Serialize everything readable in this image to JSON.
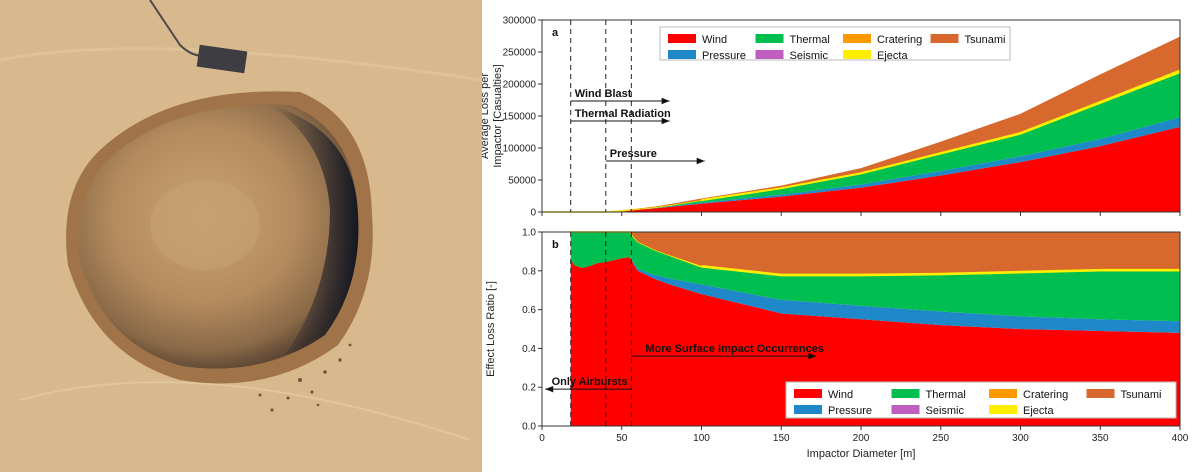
{
  "photo": {
    "subject": "meteor-crater-satellite-photo"
  },
  "colors": {
    "Wind": "#ff0000",
    "Pressure": "#1e88c8",
    "Thermal": "#00bf50",
    "Seismic": "#c05ec0",
    "Cratering": "#ff9900",
    "Ejecta": "#ffee00",
    "Tsunami": "#d8692e"
  },
  "chart_data": [
    {
      "type": "area",
      "stacked": true,
      "panel_label": "a",
      "ylabel_lines": [
        "Average Loss per",
        "Impactor [Casualties]"
      ],
      "xlim": [
        0,
        400
      ],
      "ylim": [
        0,
        300000
      ],
      "yticks": [
        0,
        50000,
        100000,
        150000,
        200000,
        250000,
        300000
      ],
      "x": [
        0,
        40,
        50,
        55,
        60,
        70,
        80,
        100,
        150,
        200,
        250,
        300,
        350,
        400
      ],
      "series": [
        {
          "name": "Wind",
          "values": [
            0,
            0,
            1500,
            2500,
            3500,
            5500,
            8000,
            13000,
            24000,
            38000,
            57000,
            78000,
            103000,
            133000
          ]
        },
        {
          "name": "Pressure",
          "values": [
            0,
            0,
            100,
            200,
            300,
            500,
            800,
            1500,
            3000,
            5000,
            7000,
            9000,
            11000,
            15000
          ]
        },
        {
          "name": "Thermal",
          "values": [
            0,
            0,
            200,
            400,
            600,
            1200,
            2000,
            4000,
            10000,
            17000,
            27000,
            35000,
            56000,
            70000
          ]
        },
        {
          "name": "Seismic",
          "values": [
            0,
            0,
            0,
            0,
            0,
            0,
            0,
            0,
            0,
            0,
            0,
            0,
            0,
            0
          ]
        },
        {
          "name": "Cratering",
          "values": [
            0,
            0,
            0,
            0,
            0,
            0,
            0,
            0,
            0,
            0,
            0,
            0,
            0,
            0
          ]
        },
        {
          "name": "Ejecta",
          "values": [
            0,
            0,
            0,
            0,
            0,
            0,
            0,
            0,
            200,
            500,
            1000,
            1500,
            2000,
            3000
          ]
        },
        {
          "name": "Tsunami",
          "values": [
            0,
            0,
            200,
            400,
            600,
            800,
            1500,
            2500,
            4000,
            8000,
            18000,
            30000,
            43000,
            53000
          ]
        }
      ],
      "vlines": [
        18,
        40,
        56
      ],
      "annotations": [
        {
          "text": "Wind Blast",
          "x_start": 18,
          "x_end": 80
        },
        {
          "text": "Thermal Radiation",
          "x_start": 18,
          "x_end": 80
        },
        {
          "text": "Pressure",
          "x_start": 40,
          "x_end": 102
        }
      ],
      "legend": [
        "Wind",
        "Thermal",
        "Cratering",
        "Tsunami",
        "Pressure",
        "Seismic",
        "Ejecta"
      ],
      "legend_position": "top"
    },
    {
      "type": "area",
      "stacked": true,
      "panel_label": "b",
      "ylabel": "Effect Loss Ratio [-]",
      "xlabel": "Impactor Diameter [m]",
      "xlim": [
        0,
        400
      ],
      "ylim": [
        0,
        1.0
      ],
      "yticks": [
        "0.0",
        "0.2",
        "0.4",
        "0.6",
        "0.8",
        "1.0"
      ],
      "xticks": [
        0,
        50,
        100,
        150,
        200,
        250,
        300,
        350,
        400
      ],
      "x": [
        18,
        20,
        25,
        30,
        35,
        40,
        45,
        50,
        55,
        57,
        60,
        70,
        80,
        100,
        150,
        200,
        250,
        300,
        350,
        400
      ],
      "series": [
        {
          "name": "Wind",
          "values": [
            0.86,
            0.83,
            0.815,
            0.825,
            0.84,
            0.845,
            0.855,
            0.865,
            0.87,
            0.84,
            0.8,
            0.76,
            0.73,
            0.68,
            0.58,
            0.55,
            0.52,
            0.5,
            0.49,
            0.48
          ]
        },
        {
          "name": "Pressure",
          "values": [
            0.0,
            0.0,
            0.0,
            0.0,
            0.0,
            0.0,
            0.0,
            0.0,
            0.0,
            0.01,
            0.01,
            0.02,
            0.03,
            0.05,
            0.07,
            0.07,
            0.07,
            0.065,
            0.06,
            0.06
          ]
        },
        {
          "name": "Thermal",
          "values": [
            0.14,
            0.17,
            0.185,
            0.175,
            0.16,
            0.155,
            0.145,
            0.135,
            0.13,
            0.13,
            0.14,
            0.13,
            0.12,
            0.09,
            0.125,
            0.155,
            0.19,
            0.225,
            0.25,
            0.26
          ]
        },
        {
          "name": "Seismic",
          "values": [
            0,
            0,
            0,
            0,
            0,
            0,
            0,
            0,
            0,
            0,
            0,
            0,
            0,
            0,
            0,
            0,
            0,
            0,
            0,
            0
          ]
        },
        {
          "name": "Cratering",
          "values": [
            0,
            0,
            0,
            0,
            0,
            0,
            0,
            0,
            0,
            0,
            0,
            0,
            0,
            0,
            0,
            0,
            0,
            0,
            0,
            0
          ]
        },
        {
          "name": "Ejecta",
          "values": [
            0,
            0,
            0,
            0,
            0,
            0,
            0,
            0,
            0,
            0,
            0,
            0,
            0,
            0.005,
            0.005,
            0.005,
            0.005,
            0.005,
            0.005,
            0.005
          ]
        },
        {
          "name": "Tsunami",
          "values": [
            0,
            0,
            0,
            0,
            0,
            0,
            0,
            0,
            0,
            0.02,
            0.05,
            0.09,
            0.12,
            0.175,
            0.22,
            0.22,
            0.215,
            0.205,
            0.195,
            0.195
          ]
        }
      ],
      "vlines": [
        18,
        40,
        56
      ],
      "annotations": [
        {
          "text": "More Surface Impact Occurrences",
          "x_start": 56,
          "x_end": 172,
          "y": 0.36
        },
        {
          "text": "Only Airbursts",
          "x_start": 56,
          "x_end": 2,
          "y": 0.19
        }
      ],
      "legend": [
        "Wind",
        "Thermal",
        "Cratering",
        "Tsunami",
        "Pressure",
        "Seismic",
        "Ejecta"
      ],
      "legend_position": "bottom-right"
    }
  ]
}
